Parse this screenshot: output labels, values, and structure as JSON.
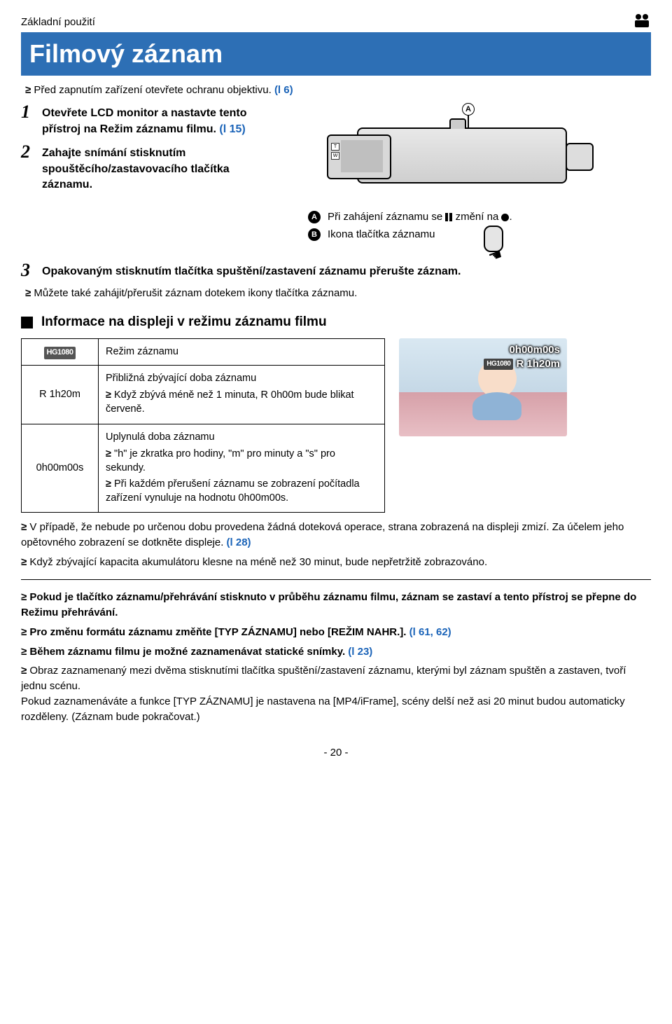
{
  "breadcrumb": "Základní použití",
  "title": "Filmový záznam",
  "intro": "Před zapnutím zařízení otevřete ochranu objektivu. ",
  "intro_ref": "(l 6)",
  "steps": {
    "s1": {
      "num": "1",
      "text": "Otevřete LCD monitor a nastavte tento přístroj na Režim záznamu filmu. ",
      "ref": "(l 15)"
    },
    "s2": {
      "num": "2",
      "text": "Zahajte snímání stisknutím spouštěcího/zastavovacího tlačítka záznamu."
    },
    "s3": {
      "num": "3",
      "text": "Opakovaným stisknutím tlačítka spuštění/zastavení záznamu přerušte záznam."
    }
  },
  "legend": {
    "a": {
      "letter": "A",
      "pre": "Při zahájení záznamu se ",
      "mid": " změní na ",
      "post": "."
    },
    "b": {
      "letter": "B",
      "text": "Ikona tlačítka záznamu"
    }
  },
  "calloutA": "A",
  "calloutB": "B",
  "tw_t": "T",
  "tw_w": "W",
  "s3_bullet": "Můžete také zahájit/přerušit záznam dotekem ikony tlačítka záznamu.",
  "section_heading": "Informace na displeji v režimu záznamu filmu",
  "table": {
    "r1_key_badge": "HG1080",
    "r1_val": "Režim záznamu",
    "r2_key": "R 1h20m",
    "r2_title": "Přibližná zbývající doba záznamu",
    "r2_b1": "Když zbývá méně než 1 minuta, R 0h00m bude blikat červeně.",
    "r3_key": "0h00m00s",
    "r3_title": "Uplynulá doba záznamu",
    "r3_b1": "\"h\" je zkratka pro hodiny, \"m\" pro minuty a \"s\" pro sekundy.",
    "r3_b2": "Při každém přerušení záznamu se zobrazení počítadla zařízení vynuluje na hodnotu 0h00m00s."
  },
  "preview": {
    "line1": "0h00m00s",
    "badge": "HG1080",
    "line2": "R 1h20m"
  },
  "post_bullets": {
    "b1": "V případě, že nebude po určenou dobu provedena žádná doteková operace, strana zobrazená na displeji zmizí. Za účelem jeho opětovného zobrazení se dotkněte displeje. ",
    "b1_ref": "(l 28)",
    "b2": "Když zbývající kapacita akumulátoru klesne na méně než 30 minut, bude nepřetržitě zobrazováno."
  },
  "final_bullets": {
    "b1": "Pokud je tlačítko záznamu/přehrávání stisknuto v průběhu záznamu filmu, záznam se zastaví a tento přístroj se přepne do Režimu přehrávání.",
    "b2_pre": "Pro změnu formátu záznamu změňte [TYP ZÁZNAMU] nebo [REŽIM NAHR.]. ",
    "b2_ref": "(l 61, 62)",
    "b3_pre": "Během záznamu filmu je možné zaznamenávat statické snímky. ",
    "b3_ref": "(l 23)",
    "b4": "Obraz zaznamenaný mezi dvěma stisknutími tlačítka spuštění/zastavení záznamu, kterými byl záznam spuštěn a zastaven, tvoří jednu scénu.",
    "b4_cont": "Pokud zaznamenáváte a funkce [TYP ZÁZNAMU] je nastavena na [MP4/iFrame], scény delší než asi 20 minut budou automaticky rozděleny. (Záznam bude pokračovat.)"
  },
  "page_number": "- 20 -"
}
